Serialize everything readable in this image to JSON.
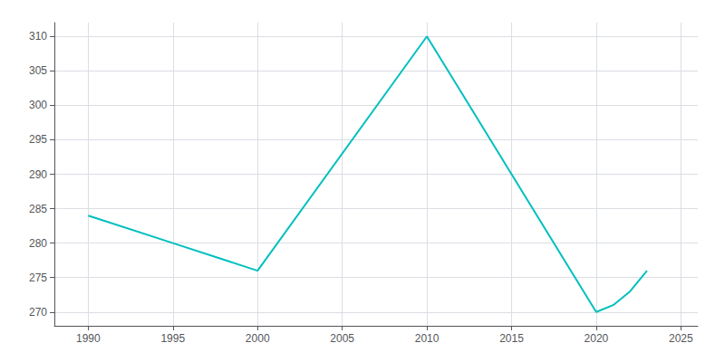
{
  "chart_data": {
    "type": "line",
    "x": [
      1990,
      1995,
      2000,
      2010,
      2020,
      2021,
      2022,
      2023
    ],
    "values": [
      284,
      280,
      276,
      310,
      270,
      271,
      273,
      276
    ],
    "color": "#00BFBF",
    "xlim": [
      1988,
      2026
    ],
    "ylim": [
      268,
      312
    ],
    "xticks": [
      1990,
      1995,
      2000,
      2005,
      2010,
      2015,
      2020,
      2025
    ],
    "yticks": [
      270,
      275,
      280,
      285,
      290,
      295,
      300,
      305,
      310
    ],
    "grid": true
  }
}
